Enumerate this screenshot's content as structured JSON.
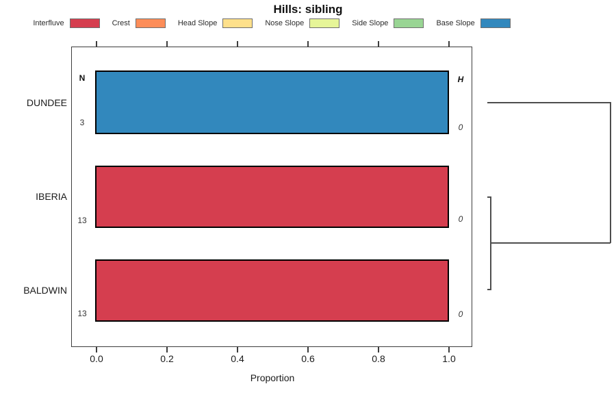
{
  "title": "Hills: sibling",
  "legend": [
    {
      "label": "Interfluve",
      "color": "#D53E4F"
    },
    {
      "label": "Crest",
      "color": "#FC8D59"
    },
    {
      "label": "Head Slope",
      "color": "#FEE08B"
    },
    {
      "label": "Nose Slope",
      "color": "#E6F598"
    },
    {
      "label": "Side Slope",
      "color": "#99D594"
    },
    {
      "label": "Base Slope",
      "color": "#3288BD"
    }
  ],
  "column_headers": {
    "n": "N",
    "h": "H"
  },
  "chart_data": {
    "type": "bar",
    "orientation": "horizontal",
    "title": "Hills: sibling",
    "xlabel": "Proportion",
    "xlim": [
      0.0,
      1.0
    ],
    "xticks": [
      "0.0",
      "0.2",
      "0.4",
      "0.6",
      "0.8",
      "1.0"
    ],
    "grid": false,
    "legend_position": "top",
    "categories": [
      "DUNDEE",
      "IBERIA",
      "BALDWIN"
    ],
    "rows": [
      {
        "label": "DUNDEE",
        "n": "3",
        "h": "0",
        "segments": [
          {
            "class": "Base Slope",
            "proportion": 1.0,
            "color": "#3288BD"
          }
        ]
      },
      {
        "label": "IBERIA",
        "n": "13",
        "h": "0",
        "segments": [
          {
            "class": "Interfluve",
            "proportion": 1.0,
            "color": "#D53E4F"
          }
        ]
      },
      {
        "label": "BALDWIN",
        "n": "13",
        "h": "0",
        "segments": [
          {
            "class": "Interfluve",
            "proportion": 1.0,
            "color": "#D53E4F"
          }
        ]
      }
    ],
    "dendrogram": {
      "position": "right",
      "first_merge": [
        "IBERIA",
        "BALDWIN"
      ],
      "second_merge": [
        [
          "IBERIA",
          "BALDWIN"
        ],
        "DUNDEE"
      ]
    }
  }
}
